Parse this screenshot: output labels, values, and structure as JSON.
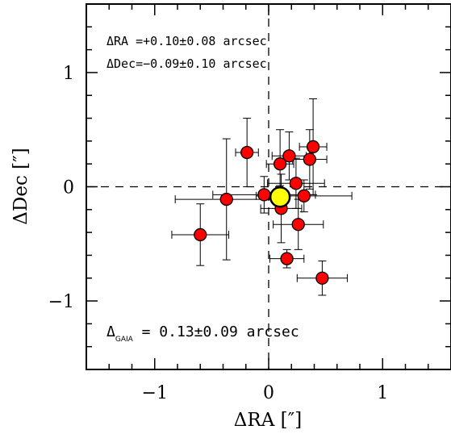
{
  "chart_data": {
    "type": "scatter",
    "xlabel": "ΔRA [″]",
    "ylabel": "ΔDec [″]",
    "xlim": [
      -1.6,
      1.6
    ],
    "ylim": [
      -1.6,
      1.6
    ],
    "xticks": [
      -1,
      0,
      1
    ],
    "yticks": [
      -1,
      0,
      1
    ],
    "xtick_labels": [
      "−1",
      "0",
      "1"
    ],
    "ytick_labels": [
      "−1",
      "0",
      "1"
    ],
    "grid": false,
    "reference_lines": {
      "x": 0,
      "y": 0,
      "style": "dashed"
    },
    "annotations": [
      {
        "text": "ΔRA =+0.10±0.08 arcsec",
        "position": "top-left"
      },
      {
        "text": "ΔDec=−0.09±0.10 arcsec",
        "position": "top-left"
      },
      {
        "text_main": "Δ",
        "text_sub": "GAIA",
        "text_rest": " = 0.13±0.09 arcsec",
        "position": "bottom-left"
      }
    ],
    "series": [
      {
        "marker": "circle",
        "color": "#ff0000",
        "points": [
          {
            "x": -0.19,
            "y": 0.3,
            "xerr": 0.1,
            "yerr": 0.3
          },
          {
            "x": 0.1,
            "y": 0.2,
            "xerr": 0.12,
            "yerr": 0.3
          },
          {
            "x": 0.18,
            "y": 0.27,
            "xerr": 0.15,
            "yerr": 0.21
          },
          {
            "x": 0.39,
            "y": 0.35,
            "xerr": 0.12,
            "yerr": 0.42
          },
          {
            "x": 0.36,
            "y": 0.24,
            "xerr": 0.15,
            "yerr": 0.26
          },
          {
            "x": 0.24,
            "y": 0.03,
            "xerr": 0.25,
            "yerr": 0.22
          },
          {
            "x": -0.04,
            "y": -0.07,
            "xerr": 0.45,
            "yerr": 0.16
          },
          {
            "x": 0.31,
            "y": -0.08,
            "xerr": 0.42,
            "yerr": 0.14
          },
          {
            "x": -0.37,
            "y": -0.11,
            "xerr": 0.45,
            "yerr": 0.53
          },
          {
            "x": 0.11,
            "y": -0.19,
            "xerr": 0.18,
            "yerr": 0.3
          },
          {
            "x": 0.26,
            "y": -0.33,
            "xerr": 0.22,
            "yerr": 0.22
          },
          {
            "x": -0.6,
            "y": -0.42,
            "xerr": 0.25,
            "yerr": 0.27
          },
          {
            "x": 0.16,
            "y": -0.63,
            "xerr": 0.15,
            "yerr": 0.08
          },
          {
            "x": 0.47,
            "y": -0.8,
            "xerr": 0.22,
            "yerr": 0.15
          }
        ]
      },
      {
        "marker": "circle-large",
        "color": "#ffff00",
        "points": [
          {
            "x": 0.1,
            "y": -0.09,
            "xerr": 0.08,
            "yerr": 0.1
          }
        ]
      }
    ]
  }
}
